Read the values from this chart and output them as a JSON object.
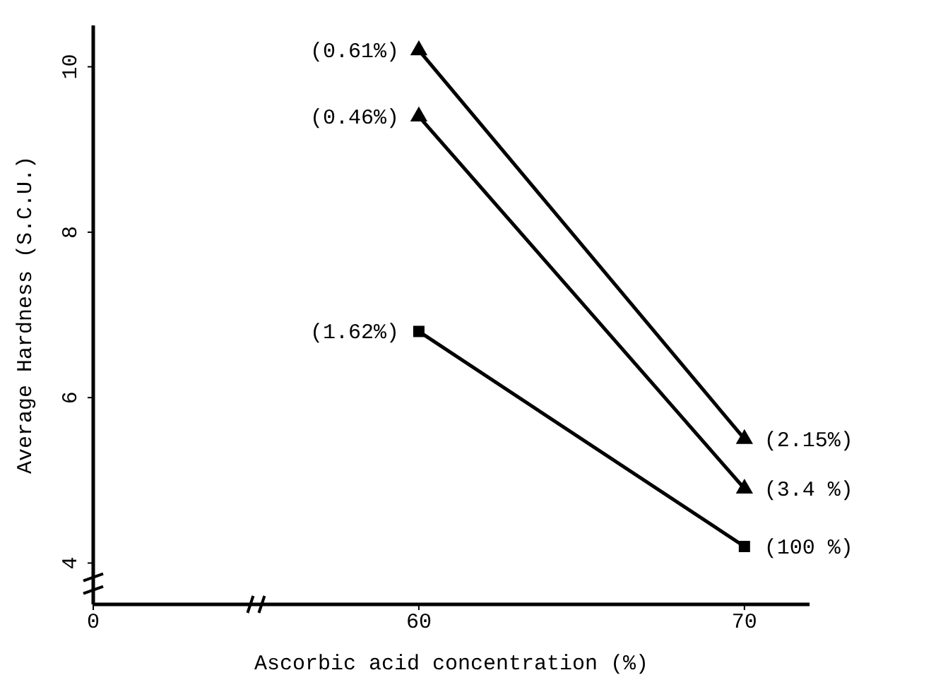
{
  "chart_data": {
    "type": "line",
    "xlabel": "Ascorbic acid concentration (%)",
    "ylabel": "Average Hardness (S.C.U.)",
    "categories": [
      "0",
      "60",
      "70"
    ],
    "series": [
      {
        "color": "#000000",
        "marker": "triangle",
        "values": [
          null,
          10.2,
          5.5
        ]
      },
      {
        "color": "#000000",
        "marker": "triangle",
        "values": [
          null,
          9.4,
          4.9
        ]
      },
      {
        "color": "#000000",
        "marker": "square",
        "values": [
          null,
          6.8,
          4.2
        ]
      }
    ],
    "ylim": [
      3.5,
      10.5
    ],
    "yticks": [
      4,
      6,
      8,
      10
    ],
    "line_style": "solid",
    "annotations": [
      {
        "text": "(0.61%)",
        "x": "60",
        "y": 10.2
      },
      {
        "text": "(0.46%)",
        "x": "60",
        "y": 9.4
      },
      {
        "text": "(1.62%)",
        "x": "60",
        "y": 6.8
      },
      {
        "text": "(2.15%)",
        "x": "70",
        "y": 5.5
      },
      {
        "text": "(3.4 %)",
        "x": "70",
        "y": 4.9
      },
      {
        "text": "(100 %)",
        "x": "70",
        "y": 4.2
      }
    ]
  }
}
